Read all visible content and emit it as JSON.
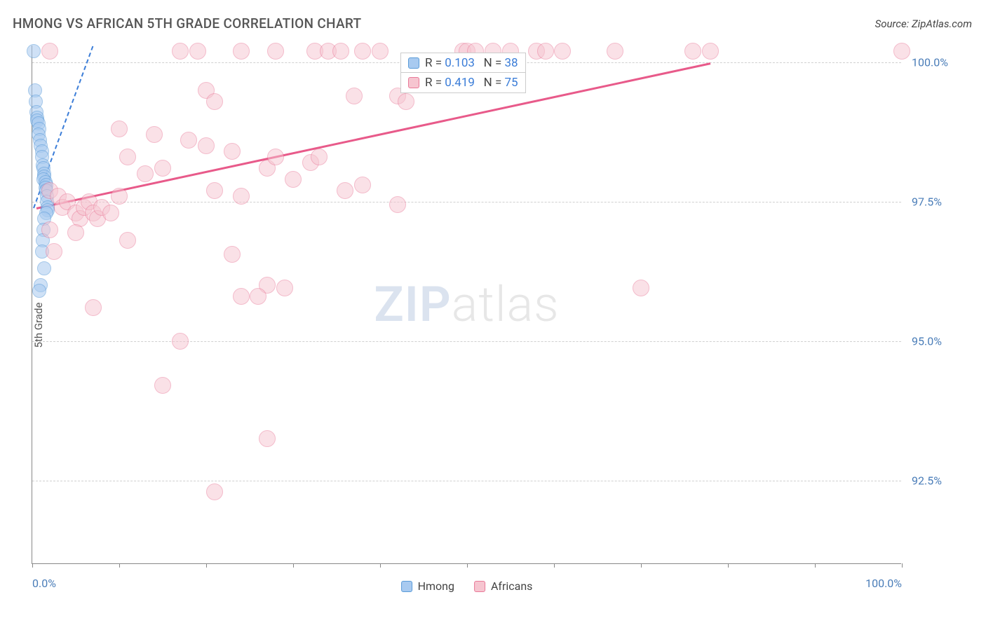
{
  "title": "HMONG VS AFRICAN 5TH GRADE CORRELATION CHART",
  "source": "Source: ZipAtlas.com",
  "y_axis_label": "5th Grade",
  "watermark_bold": "ZIP",
  "watermark_light": "atlas",
  "chart": {
    "type": "scatter",
    "background_color": "#ffffff",
    "grid_color": "#d0d0d0",
    "axis_color": "#888888",
    "tick_label_color": "#4a7db8",
    "xlim": [
      0,
      100
    ],
    "ylim": [
      91,
      100.3
    ],
    "x_tick_positions": [
      0,
      10,
      20,
      30,
      40,
      50,
      60,
      70,
      80,
      90,
      100
    ],
    "x_tick_labels": {
      "0": "0.0%",
      "100": "100.0%"
    },
    "y_ticks": [
      {
        "value": 92.5,
        "label": "92.5%"
      },
      {
        "value": 95.0,
        "label": "95.0%"
      },
      {
        "value": 97.5,
        "label": "97.5%"
      },
      {
        "value": 100.0,
        "label": "100.0%"
      }
    ],
    "series": [
      {
        "name": "Hmong",
        "marker_color_fill": "#a8caf0",
        "marker_color_stroke": "#5a9bd8",
        "marker_size": 20,
        "marker_opacity": 0.55,
        "trend_color": "#3b7dd8",
        "trend_dash": true,
        "trend_start": [
          0.2,
          97.4
        ],
        "trend_end": [
          7,
          100.3
        ],
        "legend_r": "0.103",
        "legend_n": "38",
        "points": [
          [
            0.2,
            100.2
          ],
          [
            0.3,
            99.5
          ],
          [
            0.4,
            99.3
          ],
          [
            0.5,
            99.1
          ],
          [
            0.6,
            99.0
          ],
          [
            0.6,
            98.95
          ],
          [
            0.7,
            98.9
          ],
          [
            0.8,
            98.8
          ],
          [
            0.7,
            98.7
          ],
          [
            0.9,
            98.6
          ],
          [
            1.0,
            98.5
          ],
          [
            1.1,
            98.4
          ],
          [
            1.1,
            98.3
          ],
          [
            1.2,
            98.15
          ],
          [
            1.3,
            98.1
          ],
          [
            1.4,
            98.0
          ],
          [
            1.4,
            97.95
          ],
          [
            1.3,
            97.9
          ],
          [
            1.5,
            97.85
          ],
          [
            1.6,
            97.8
          ],
          [
            1.5,
            97.75
          ],
          [
            1.6,
            97.7
          ],
          [
            1.7,
            97.6
          ],
          [
            1.7,
            97.5
          ],
          [
            1.8,
            97.4
          ],
          [
            1.8,
            97.35
          ],
          [
            1.6,
            97.3
          ],
          [
            1.4,
            97.2
          ],
          [
            1.3,
            97.0
          ],
          [
            1.2,
            96.8
          ],
          [
            1.1,
            96.6
          ],
          [
            1.4,
            96.3
          ],
          [
            1.0,
            96.0
          ],
          [
            0.8,
            95.9
          ]
        ]
      },
      {
        "name": "Africans",
        "marker_color_fill": "#f6c5d0",
        "marker_color_stroke": "#e97998",
        "marker_size": 24,
        "marker_opacity": 0.5,
        "trend_color": "#e85a8a",
        "trend_dash": false,
        "trend_start": [
          0.5,
          97.4
        ],
        "trend_end": [
          78,
          100.0
        ],
        "legend_r": "0.419",
        "legend_n": "75",
        "points": [
          [
            2,
            100.2
          ],
          [
            17,
            100.2
          ],
          [
            19,
            100.2
          ],
          [
            24,
            100.2
          ],
          [
            28,
            100.2
          ],
          [
            32.5,
            100.2
          ],
          [
            34,
            100.2
          ],
          [
            35.5,
            100.2
          ],
          [
            38,
            100.2
          ],
          [
            40,
            100.2
          ],
          [
            49.5,
            100.2
          ],
          [
            50,
            100.2
          ],
          [
            51,
            100.2
          ],
          [
            53,
            100.2
          ],
          [
            55,
            100.2
          ],
          [
            58,
            100.2
          ],
          [
            59,
            100.2
          ],
          [
            61,
            100.2
          ],
          [
            67,
            100.2
          ],
          [
            76,
            100.2
          ],
          [
            78,
            100.2
          ],
          [
            100,
            100.2
          ],
          [
            20,
            99.5
          ],
          [
            21,
            99.3
          ],
          [
            37,
            99.4
          ],
          [
            42,
            99.4
          ],
          [
            43,
            99.3
          ],
          [
            10,
            98.8
          ],
          [
            11,
            98.3
          ],
          [
            13,
            98.0
          ],
          [
            14,
            98.7
          ],
          [
            15,
            98.1
          ],
          [
            18,
            98.6
          ],
          [
            20,
            98.5
          ],
          [
            21,
            97.7
          ],
          [
            23,
            98.4
          ],
          [
            24,
            97.6
          ],
          [
            27,
            98.1
          ],
          [
            28,
            98.3
          ],
          [
            30,
            97.9
          ],
          [
            32,
            98.2
          ],
          [
            33,
            98.3
          ],
          [
            36,
            97.7
          ],
          [
            38,
            97.8
          ],
          [
            42,
            97.45
          ],
          [
            2,
            97.7
          ],
          [
            3,
            97.6
          ],
          [
            3.5,
            97.4
          ],
          [
            4,
            97.5
          ],
          [
            5,
            97.3
          ],
          [
            5.5,
            97.2
          ],
          [
            6,
            97.4
          ],
          [
            6.5,
            97.5
          ],
          [
            7,
            97.3
          ],
          [
            7.5,
            97.2
          ],
          [
            8,
            97.4
          ],
          [
            9,
            97.3
          ],
          [
            10,
            97.6
          ],
          [
            2,
            97.0
          ],
          [
            5,
            96.95
          ],
          [
            11,
            96.8
          ],
          [
            2.5,
            96.6
          ],
          [
            23,
            96.55
          ],
          [
            27,
            96.0
          ],
          [
            29,
            95.95
          ],
          [
            24,
            95.8
          ],
          [
            26,
            95.8
          ],
          [
            7,
            95.6
          ],
          [
            17,
            95.0
          ],
          [
            15,
            94.2
          ],
          [
            21,
            92.3
          ],
          [
            27,
            93.25
          ],
          [
            70,
            95.95
          ]
        ]
      }
    ],
    "legend_labels": {
      "r_prefix": "R =",
      "n_prefix": "N ="
    },
    "bottom_legend": [
      {
        "label": "Hmong",
        "fill": "#a8caf0",
        "stroke": "#5a9bd8"
      },
      {
        "label": "Africans",
        "fill": "#f6c5d0",
        "stroke": "#e97998"
      }
    ]
  }
}
